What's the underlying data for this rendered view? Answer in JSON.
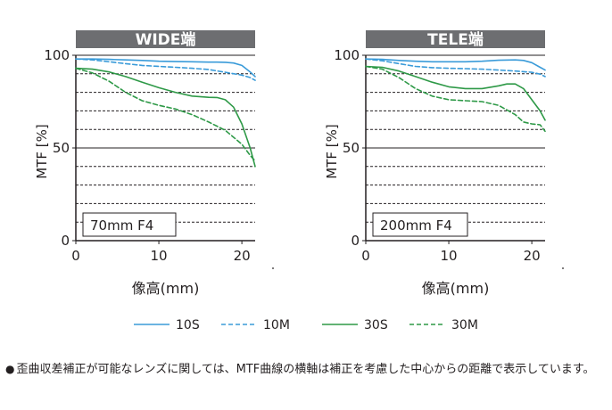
{
  "chart_data": [
    {
      "type": "line",
      "title": "WIDE端",
      "xlabel": "像高(mm)",
      "ylabel": "MTF [%]",
      "xlim": [
        0,
        21.6
      ],
      "ylim": [
        0,
        100
      ],
      "xticks": [
        0,
        10,
        20
      ],
      "yticks": [
        0,
        50,
        100
      ],
      "grid_y": [
        10,
        20,
        30,
        40,
        60,
        70,
        80,
        90
      ],
      "annotation": "70mm F4",
      "series": [
        {
          "name": "10S",
          "style": "solid",
          "color": "#3a9bd9",
          "x": [
            0,
            2,
            4,
            6,
            8,
            10,
            12,
            14,
            16,
            17,
            18,
            19,
            20,
            21,
            21.6
          ],
          "y": [
            98,
            98,
            97.8,
            97.5,
            97.2,
            96.8,
            96.6,
            96.5,
            96.3,
            96.3,
            96.2,
            95.8,
            94.5,
            91,
            88.5
          ]
        },
        {
          "name": "10M",
          "style": "dashed",
          "color": "#3a9bd9",
          "x": [
            0,
            2,
            4,
            6,
            8,
            10,
            12,
            14,
            16,
            18,
            20,
            21,
            21.6
          ],
          "y": [
            98,
            97.5,
            96.5,
            95.5,
            94.5,
            94,
            93.5,
            93,
            92.3,
            90.8,
            89.3,
            88,
            86.5
          ]
        },
        {
          "name": "30S",
          "style": "solid",
          "color": "#2e9947",
          "x": [
            0,
            2,
            4,
            6,
            8,
            10,
            12,
            14,
            16,
            17,
            18,
            19,
            20,
            21,
            21.6
          ],
          "y": [
            93,
            92.5,
            91,
            88.5,
            85.5,
            82.5,
            80,
            78,
            77.3,
            77.2,
            76,
            72,
            63,
            50,
            40
          ]
        },
        {
          "name": "30M",
          "style": "dashed",
          "color": "#2e9947",
          "x": [
            0,
            2,
            4,
            6,
            8,
            10,
            12,
            14,
            16,
            18,
            20,
            21,
            21.6
          ],
          "y": [
            93,
            90.5,
            86,
            80,
            75.5,
            73,
            71,
            68,
            64,
            59.5,
            52,
            46,
            43
          ]
        }
      ]
    },
    {
      "type": "line",
      "title": "TELE端",
      "xlabel": "像高(mm)",
      "ylabel": "MTF [%]",
      "xlim": [
        0,
        21.6
      ],
      "ylim": [
        0,
        100
      ],
      "xticks": [
        0,
        10,
        20
      ],
      "yticks": [
        0,
        50,
        100
      ],
      "grid_y": [
        10,
        20,
        30,
        40,
        60,
        70,
        80,
        90
      ],
      "annotation": "200mm F4",
      "series": [
        {
          "name": "10S",
          "style": "solid",
          "color": "#3a9bd9",
          "x": [
            0,
            2,
            4,
            6,
            8,
            10,
            12,
            14,
            16,
            18,
            19,
            20,
            21,
            21.6
          ],
          "y": [
            98,
            97.8,
            97.2,
            96.8,
            96.5,
            96.5,
            96.5,
            96.8,
            97.3,
            97.5,
            97.2,
            96,
            93.5,
            92
          ]
        },
        {
          "name": "10M",
          "style": "dashed",
          "color": "#3a9bd9",
          "x": [
            0,
            2,
            4,
            6,
            8,
            10,
            12,
            14,
            16,
            18,
            20,
            21,
            21.6
          ],
          "y": [
            98,
            97,
            95.5,
            94,
            93.3,
            93,
            92.8,
            92.5,
            92,
            91.5,
            90.8,
            89.8,
            88.5
          ]
        },
        {
          "name": "30S",
          "style": "solid",
          "color": "#2e9947",
          "x": [
            0,
            2,
            4,
            6,
            8,
            10,
            12,
            14,
            16,
            17,
            18,
            19,
            20,
            21,
            21.6
          ],
          "y": [
            94,
            93.5,
            91.5,
            88.5,
            85.5,
            83,
            82,
            82,
            83.5,
            84.5,
            84.5,
            82,
            76,
            70,
            65
          ]
        },
        {
          "name": "30M",
          "style": "dashed",
          "color": "#2e9947",
          "x": [
            0,
            2,
            4,
            6,
            8,
            10,
            12,
            14,
            16,
            18,
            19,
            20,
            21,
            21.6
          ],
          "y": [
            94,
            92.5,
            88,
            82,
            78,
            76,
            75.5,
            75,
            73,
            68,
            64,
            63,
            62.5,
            59
          ]
        }
      ]
    }
  ],
  "legend": [
    {
      "label": "10S",
      "style": "solid",
      "color": "#3a9bd9"
    },
    {
      "label": "10M",
      "style": "dashed",
      "color": "#3a9bd9"
    },
    {
      "label": "30S",
      "style": "solid",
      "color": "#2e9947"
    },
    {
      "label": "30M",
      "style": "dashed",
      "color": "#2e9947"
    }
  ],
  "footnote": {
    "bullet": "●",
    "text": "歪曲収差補正が可能なレンズに関しては、MTF曲線の横軸は補正を考慮した中心からの距離で表示しています。"
  }
}
